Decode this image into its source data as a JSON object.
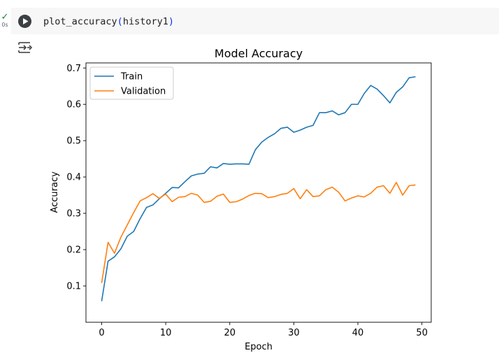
{
  "cell": {
    "status_icon": "check-icon",
    "status_check": "✓",
    "exec_time": "0s",
    "code": {
      "function": "plot_accuracy",
      "open_paren": "(",
      "argument": "history1",
      "close_paren": ")"
    },
    "run_icon": "play-icon",
    "output_icon": "output-toggle-icon"
  },
  "chart_data": {
    "type": "line",
    "title": "Model Accuracy",
    "xlabel": "Epoch",
    "ylabel": "Accuracy",
    "xlim": [
      -2.45,
      51.45
    ],
    "ylim": [
      0.0,
      0.714
    ],
    "xticks": [
      0,
      10,
      20,
      30,
      40,
      50
    ],
    "yticks": [
      0.1,
      0.2,
      0.3,
      0.4,
      0.5,
      0.6,
      0.7
    ],
    "legend_position": "top-left",
    "grid": false,
    "x": [
      0,
      1,
      2,
      3,
      4,
      5,
      6,
      7,
      8,
      9,
      10,
      11,
      12,
      13,
      14,
      15,
      16,
      17,
      18,
      19,
      20,
      21,
      22,
      23,
      24,
      25,
      26,
      27,
      28,
      29,
      30,
      31,
      32,
      33,
      34,
      35,
      36,
      37,
      38,
      39,
      40,
      41,
      42,
      43,
      44,
      45,
      46,
      47,
      48,
      49
    ],
    "series": [
      {
        "name": "Train",
        "color": "#1f77b4",
        "values": [
          0.058,
          0.168,
          0.18,
          0.202,
          0.237,
          0.25,
          0.285,
          0.316,
          0.323,
          0.34,
          0.355,
          0.371,
          0.37,
          0.387,
          0.403,
          0.408,
          0.41,
          0.428,
          0.425,
          0.437,
          0.435,
          0.436,
          0.436,
          0.435,
          0.475,
          0.496,
          0.509,
          0.519,
          0.534,
          0.537,
          0.523,
          0.529,
          0.537,
          0.542,
          0.577,
          0.577,
          0.582,
          0.571,
          0.577,
          0.6,
          0.6,
          0.63,
          0.652,
          0.642,
          0.624,
          0.604,
          0.633,
          0.648,
          0.673,
          0.676
        ]
      },
      {
        "name": "Validation",
        "color": "#ff7f0e",
        "values": [
          0.108,
          0.22,
          0.19,
          0.234,
          0.268,
          0.302,
          0.334,
          0.343,
          0.354,
          0.341,
          0.353,
          0.332,
          0.344,
          0.346,
          0.355,
          0.35,
          0.33,
          0.333,
          0.347,
          0.353,
          0.33,
          0.332,
          0.339,
          0.349,
          0.355,
          0.354,
          0.343,
          0.346,
          0.352,
          0.355,
          0.368,
          0.34,
          0.365,
          0.346,
          0.348,
          0.365,
          0.372,
          0.358,
          0.334,
          0.342,
          0.348,
          0.345,
          0.355,
          0.372,
          0.376,
          0.355,
          0.385,
          0.35,
          0.376,
          0.378
        ]
      }
    ]
  }
}
